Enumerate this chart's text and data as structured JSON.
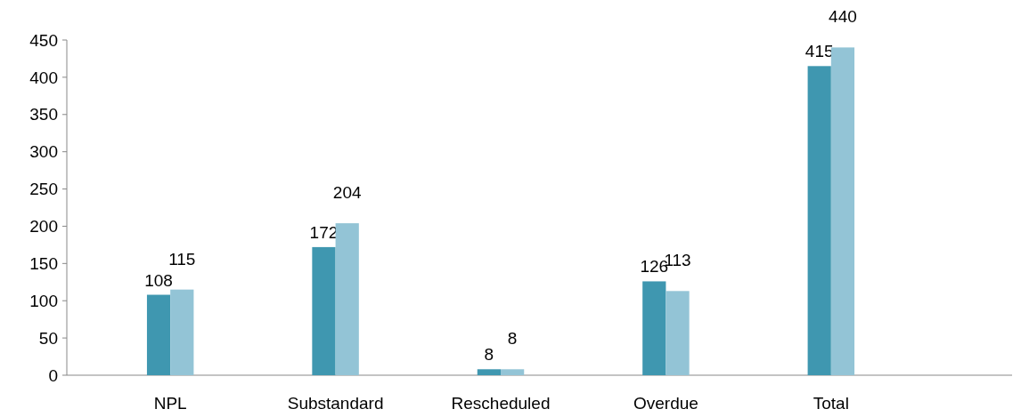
{
  "chart_data": {
    "type": "bar",
    "categories": [
      "NPL",
      "Substandard",
      "Rescheduled",
      "Overdue",
      "Total"
    ],
    "series": [
      {
        "color": "#3f97b0",
        "values": [
          108,
          172,
          8,
          126,
          415
        ]
      },
      {
        "color": "#93c4d6",
        "values": [
          115,
          204,
          8,
          113,
          440
        ]
      }
    ],
    "ylim": [
      0,
      450
    ],
    "yticks": [
      0,
      50,
      100,
      150,
      200,
      250,
      300,
      350,
      400,
      450
    ],
    "grid": false,
    "data_labels": true
  }
}
